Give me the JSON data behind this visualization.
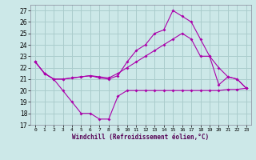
{
  "xlabel": "Windchill (Refroidissement éolien,°C)",
  "ylim": [
    17,
    27.5
  ],
  "xlim": [
    -0.5,
    23.5
  ],
  "yticks": [
    17,
    18,
    19,
    20,
    21,
    22,
    23,
    24,
    25,
    26,
    27
  ],
  "x_ticks": [
    0,
    1,
    2,
    3,
    4,
    5,
    6,
    7,
    8,
    9,
    10,
    11,
    12,
    13,
    14,
    15,
    16,
    17,
    18,
    19,
    20,
    21,
    22,
    23
  ],
  "background_color": "#cce8e8",
  "grid_color": "#aacccc",
  "line_color": "#aa00aa",
  "curve1_x": [
    0,
    1,
    2,
    3,
    4,
    5,
    6,
    7,
    8,
    9,
    10,
    11,
    12,
    13,
    14,
    15,
    16,
    17,
    18,
    19,
    20,
    21,
    22,
    23
  ],
  "curve1_y": [
    22.5,
    21.5,
    21.0,
    20.0,
    19.0,
    18.0,
    18.0,
    17.5,
    17.5,
    19.5,
    20.0,
    20.0,
    20.0,
    20.0,
    20.0,
    20.0,
    20.0,
    20.0,
    20.0,
    20.0,
    20.0,
    20.1,
    20.1,
    20.2
  ],
  "curve2_x": [
    0,
    1,
    2,
    3,
    4,
    5,
    6,
    7,
    8,
    9,
    10,
    11,
    12,
    13,
    14,
    15,
    16,
    17,
    18,
    19,
    20,
    21,
    22,
    23
  ],
  "curve2_y": [
    22.5,
    21.5,
    21.0,
    21.0,
    21.1,
    21.2,
    21.3,
    21.1,
    21.0,
    21.3,
    22.5,
    23.5,
    24.0,
    25.0,
    25.3,
    27.0,
    26.5,
    26.0,
    24.5,
    23.0,
    22.0,
    21.2,
    21.0,
    20.2
  ],
  "curve3_x": [
    0,
    1,
    2,
    3,
    4,
    5,
    6,
    7,
    8,
    9,
    10,
    11,
    12,
    13,
    14,
    15,
    16,
    17,
    18,
    19,
    20,
    21,
    22,
    23
  ],
  "curve3_y": [
    22.5,
    21.5,
    21.0,
    21.0,
    21.1,
    21.2,
    21.3,
    21.2,
    21.1,
    21.5,
    22.0,
    22.5,
    23.0,
    23.5,
    24.0,
    24.5,
    25.0,
    24.5,
    23.0,
    23.0,
    20.5,
    21.2,
    21.0,
    20.2
  ]
}
